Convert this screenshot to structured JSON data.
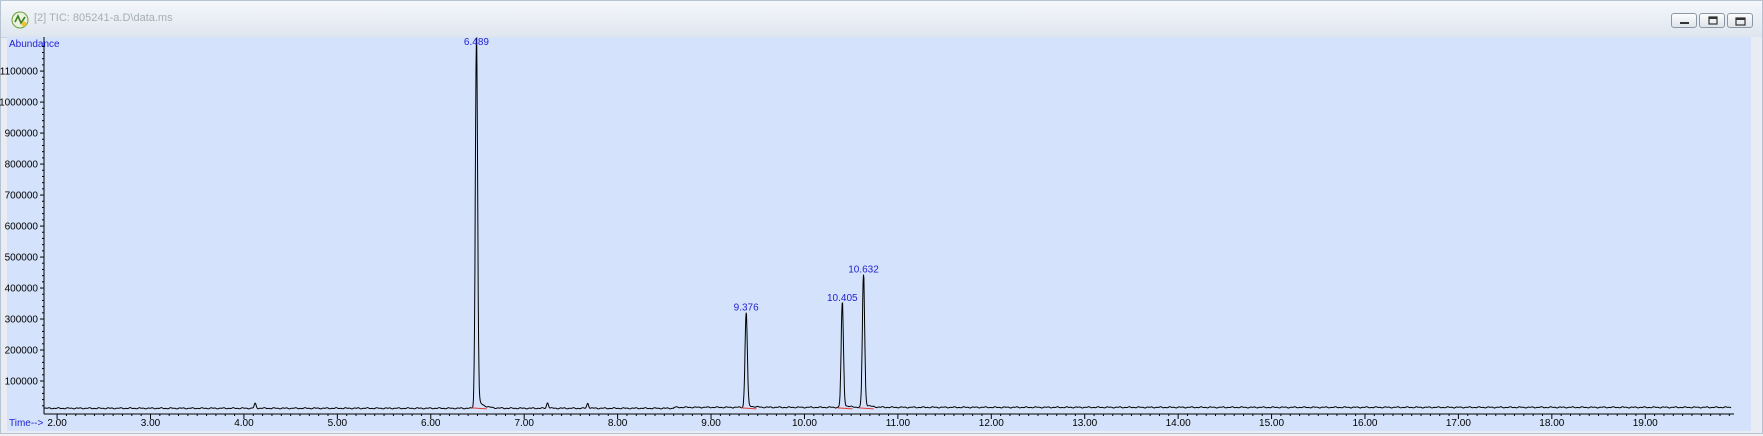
{
  "window": {
    "title": "[2] TIC: 805241-a.D\\data.ms",
    "buttons": [
      "minimize",
      "restore",
      "close"
    ]
  },
  "chart_data": {
    "type": "line",
    "xlabel": "Time-->",
    "ylabel": "Abundance",
    "xlim": [
      1.86,
      19.95
    ],
    "ylim": [
      0,
      1210000
    ],
    "x_ticks": [
      "2.00",
      "3.00",
      "4.00",
      "5.00",
      "6.00",
      "7.00",
      "8.00",
      "9.00",
      "10.00",
      "11.00",
      "12.00",
      "13.00",
      "14.00",
      "15.00",
      "16.00",
      "17.00",
      "18.00",
      "19.00"
    ],
    "y_ticks": [
      "100000",
      "200000",
      "300000",
      "400000",
      "500000",
      "600000",
      "700000",
      "800000",
      "900000",
      "1000000",
      "1100000"
    ],
    "baseline": 12000,
    "peaks": [
      {
        "label": "6.489",
        "time": 6.489,
        "abundance": 1210000
      },
      {
        "label": "9.376",
        "time": 9.376,
        "abundance": 318000
      },
      {
        "label": "10.405",
        "time": 10.405,
        "abundance": 348000
      },
      {
        "label": "10.632",
        "time": 10.632,
        "abundance": 440000
      }
    ],
    "minor_peaks": [
      {
        "time": 4.12,
        "abundance": 27000
      },
      {
        "time": 7.25,
        "abundance": 30000
      },
      {
        "time": 7.68,
        "abundance": 28000
      }
    ],
    "colors": {
      "background": "#d4e3fb",
      "trace": "#000000",
      "labels": "#1f1fd2",
      "integration": "#e23a3a"
    }
  }
}
